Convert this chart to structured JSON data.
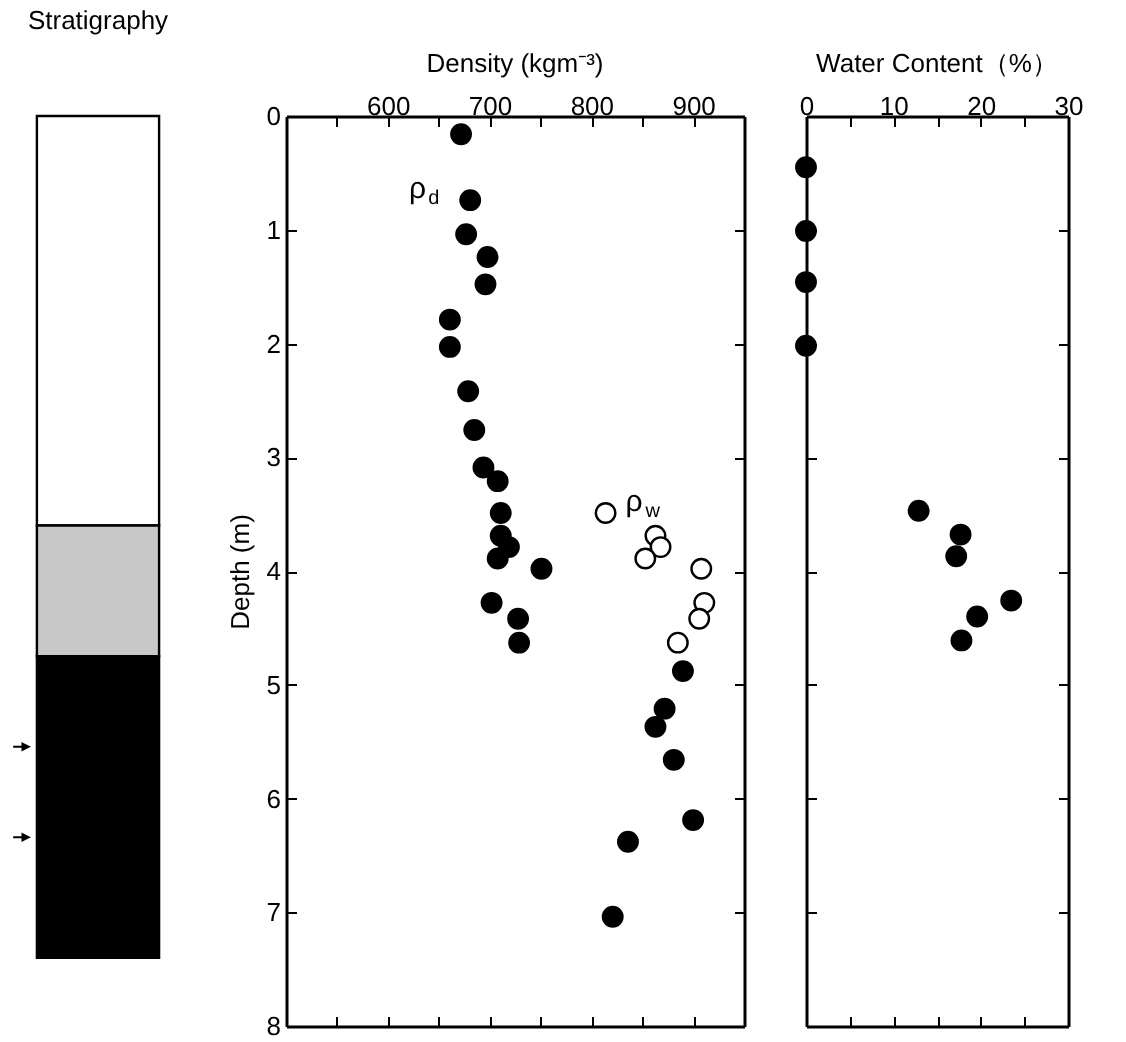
{
  "chart_data": [
    {
      "type": "bar",
      "title": "Stratigraphy",
      "categories": [
        null
      ],
      "stacked": true,
      "ylim": [
        8,
        0
      ],
      "tick_labels": false,
      "series": [
        {
          "color": "#ffffff",
          "values": [
            3.6
          ]
        },
        {
          "color": "#c8c8c8",
          "values": [
            1.15
          ]
        },
        {
          "color": "#000000",
          "values": [
            2.65
          ]
        }
      ]
    },
    {
      "type": "scatter",
      "title": "Density (kgm⁻³)",
      "ylabel": "Depth (m)",
      "xlim": [
        500,
        950
      ],
      "ylim": [
        8,
        0
      ],
      "marker": "circle",
      "xticks": [
        {
          "value": 550,
          "label": null
        },
        600,
        {
          "value": 650,
          "label": null
        },
        700,
        {
          "value": 750,
          "label": null
        },
        800,
        {
          "value": 850,
          "label": null
        },
        900
      ],
      "yticks": [
        0,
        1,
        2,
        3,
        4,
        5,
        6,
        7,
        8
      ],
      "series": [
        {
          "name": "ρ$_{d}$",
          "color": "#000000",
          "x": [
            672,
            681,
            677,
            698,
            696,
            661,
            661,
            679,
            685,
            694,
            708,
            711,
            711,
            719,
            708,
            751,
            702,
            728,
            729,
            890,
            872,
            863,
            881,
            900,
            836,
            821
          ],
          "values": [
            0.16,
            0.74,
            1.04,
            1.24,
            1.48,
            1.79,
            2.03,
            2.42,
            2.76,
            3.09,
            3.21,
            3.49,
            3.69,
            3.79,
            3.89,
            3.98,
            4.28,
            4.42,
            4.63,
            4.88,
            5.21,
            5.37,
            5.66,
            6.19,
            6.38,
            7.04
          ]
        },
        {
          "name": "ρ$_{w}$",
          "color": "#ffffff",
          "x": [
            814,
            863,
            868,
            853,
            908,
            911,
            906,
            885
          ],
          "values": [
            3.49,
            3.69,
            3.79,
            3.89,
            3.98,
            4.28,
            4.42,
            4.63
          ]
        }
      ]
    },
    {
      "type": "scatter",
      "title": "Water Content（%）",
      "xlim": [
        0,
        30
      ],
      "ylim": [
        8,
        0
      ],
      "marker": "circle",
      "tick_labels": "x",
      "xticks": [
        0,
        {
          "value": 5,
          "label": null
        },
        10,
        {
          "value": 15,
          "label": null
        },
        20,
        {
          "value": 25,
          "label": null
        },
        30
      ],
      "yticks": [
        0,
        1,
        2,
        3,
        4,
        5,
        6,
        7,
        8
      ],
      "series": [
        {
          "color": "#000000",
          "x": [
            0,
            0,
            0,
            0,
            12.9,
            17.7,
            17.2,
            23.5,
            19.6,
            17.8
          ],
          "values": [
            0.45,
            1.01,
            1.46,
            2.02,
            3.47,
            3.68,
            3.87,
            4.26,
            4.4,
            4.61
          ]
        }
      ]
    }
  ]
}
